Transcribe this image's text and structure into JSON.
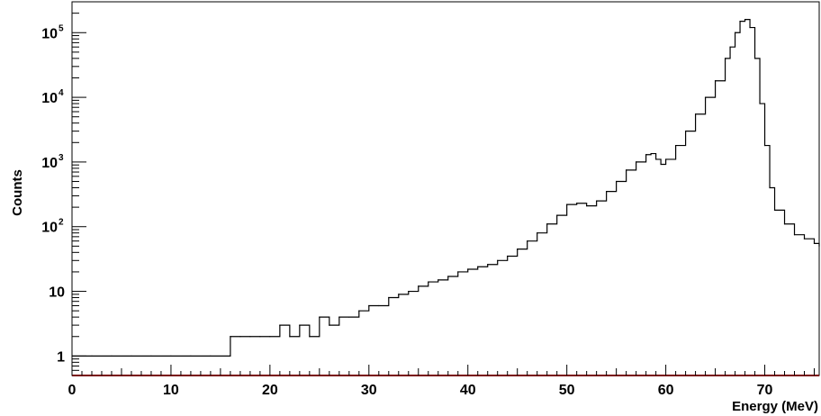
{
  "chart_data": {
    "type": "line",
    "title": "",
    "xlabel": "Energy (MeV)",
    "ylabel": "Counts",
    "xlim": [
      0,
      75.5
    ],
    "ylim": [
      0.5,
      300000
    ],
    "y_scale": "log",
    "grid": false,
    "legend": "none",
    "x_ticks": [
      0,
      10,
      20,
      30,
      40,
      50,
      60,
      70
    ],
    "x_tick_labels": [
      "0",
      "10",
      "20",
      "30",
      "40",
      "50",
      "60",
      "70"
    ],
    "y_ticks": [
      1,
      10,
      100,
      1000,
      10000,
      100000
    ],
    "y_tick_labels": [
      {
        "base": "1",
        "exp": ""
      },
      {
        "base": "10",
        "exp": ""
      },
      {
        "base": "10",
        "exp": "2"
      },
      {
        "base": "10",
        "exp": "3"
      },
      {
        "base": "10",
        "exp": "4"
      },
      {
        "base": "10",
        "exp": "5"
      }
    ],
    "series": [
      {
        "color": "#000000",
        "x": [
          0,
          2,
          4,
          6,
          8,
          10,
          12,
          14,
          16,
          17,
          18,
          19,
          20,
          21,
          22,
          23,
          24,
          25,
          26,
          27,
          28,
          29,
          30,
          31,
          32,
          33,
          34,
          35,
          36,
          37,
          38,
          39,
          40,
          41,
          42,
          43,
          44,
          45,
          46,
          47,
          48,
          49,
          50,
          51,
          52,
          53,
          54,
          55,
          56,
          57,
          58,
          58.5,
          59,
          59.5,
          60,
          61,
          62,
          63,
          64,
          65,
          66,
          66.5,
          67,
          67.5,
          68,
          68.5,
          69,
          69.5,
          70,
          70.5,
          71,
          72,
          73,
          74,
          75,
          75.5
        ],
        "y": [
          1,
          1,
          1,
          1,
          1,
          1,
          1,
          1,
          2,
          2,
          2,
          2,
          2,
          3,
          2,
          3,
          2,
          4,
          3,
          4,
          4,
          5,
          6,
          6,
          8,
          9,
          10,
          12,
          14,
          15,
          17,
          20,
          22,
          24,
          26,
          30,
          35,
          45,
          60,
          80,
          110,
          150,
          220,
          230,
          210,
          250,
          350,
          500,
          750,
          1000,
          1300,
          1350,
          1100,
          920,
          1100,
          1800,
          3000,
          5500,
          10000,
          18000,
          40000,
          60000,
          100000,
          150000,
          160000,
          120000,
          40000,
          8000,
          1800,
          400,
          180,
          110,
          75,
          65,
          55,
          50
        ]
      }
    ]
  }
}
